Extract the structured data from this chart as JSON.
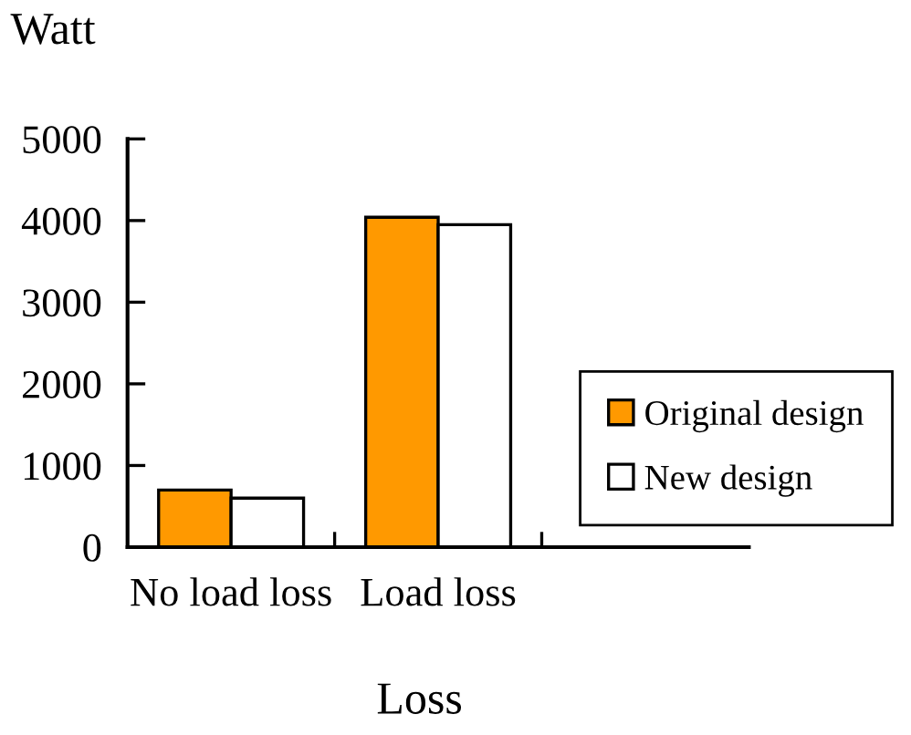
{
  "chart_data": {
    "type": "bar",
    "xlabel": "Loss",
    "ylabel": "Watt",
    "categories": [
      "No load loss",
      "Load loss",
      null
    ],
    "series": [
      {
        "name": "Original design",
        "color": "#ff9900",
        "values": [
          700,
          4040,
          null
        ]
      },
      {
        "name": "New design",
        "color": "#ffffff",
        "values": [
          600,
          3950,
          null
        ]
      }
    ],
    "ylim": [
      0,
      5000
    ],
    "yticks": [
      0,
      1000,
      2000,
      3000,
      4000,
      5000
    ],
    "grid": false,
    "legend": "right"
  }
}
